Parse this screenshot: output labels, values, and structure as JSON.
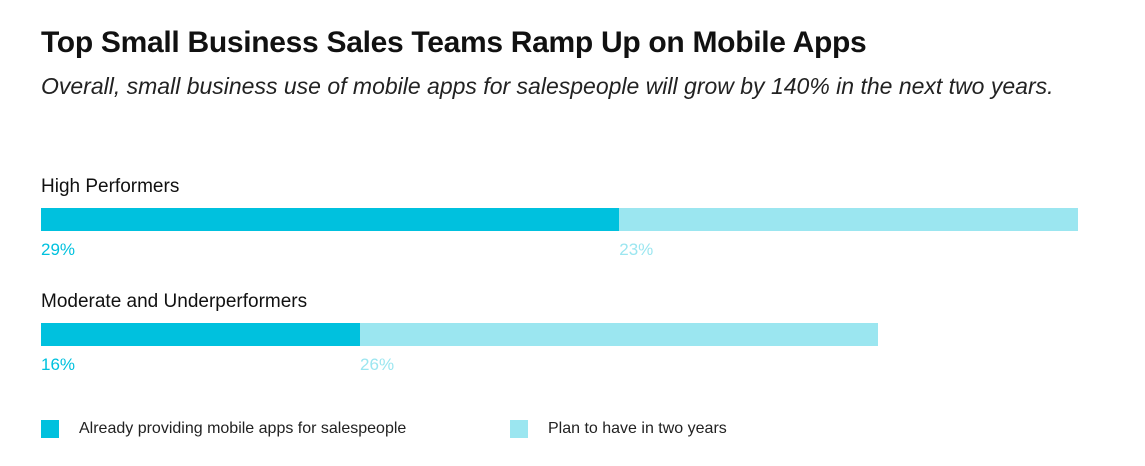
{
  "chart_data": {
    "type": "bar",
    "stacked": true,
    "orientation": "horizontal",
    "title": "Top Small Business Sales Teams Ramp Up on Mobile Apps",
    "subtitle": "Overall, small business use of mobile apps for salespeople will grow by 140% in the next two years.",
    "categories": [
      "High Performers",
      "Moderate and Underperformers"
    ],
    "series": [
      {
        "name": "Already providing mobile apps for salespeople",
        "values": [
          29,
          16
        ],
        "labels": [
          "29%",
          "16%"
        ],
        "color": "#00C1DE"
      },
      {
        "name": "Plan to have in two years",
        "values": [
          23,
          26
        ],
        "labels": [
          "23%",
          "26%"
        ],
        "color": "#9BE6F0"
      }
    ],
    "unit": "%",
    "legend_position": "bottom-left",
    "grid": false
  }
}
